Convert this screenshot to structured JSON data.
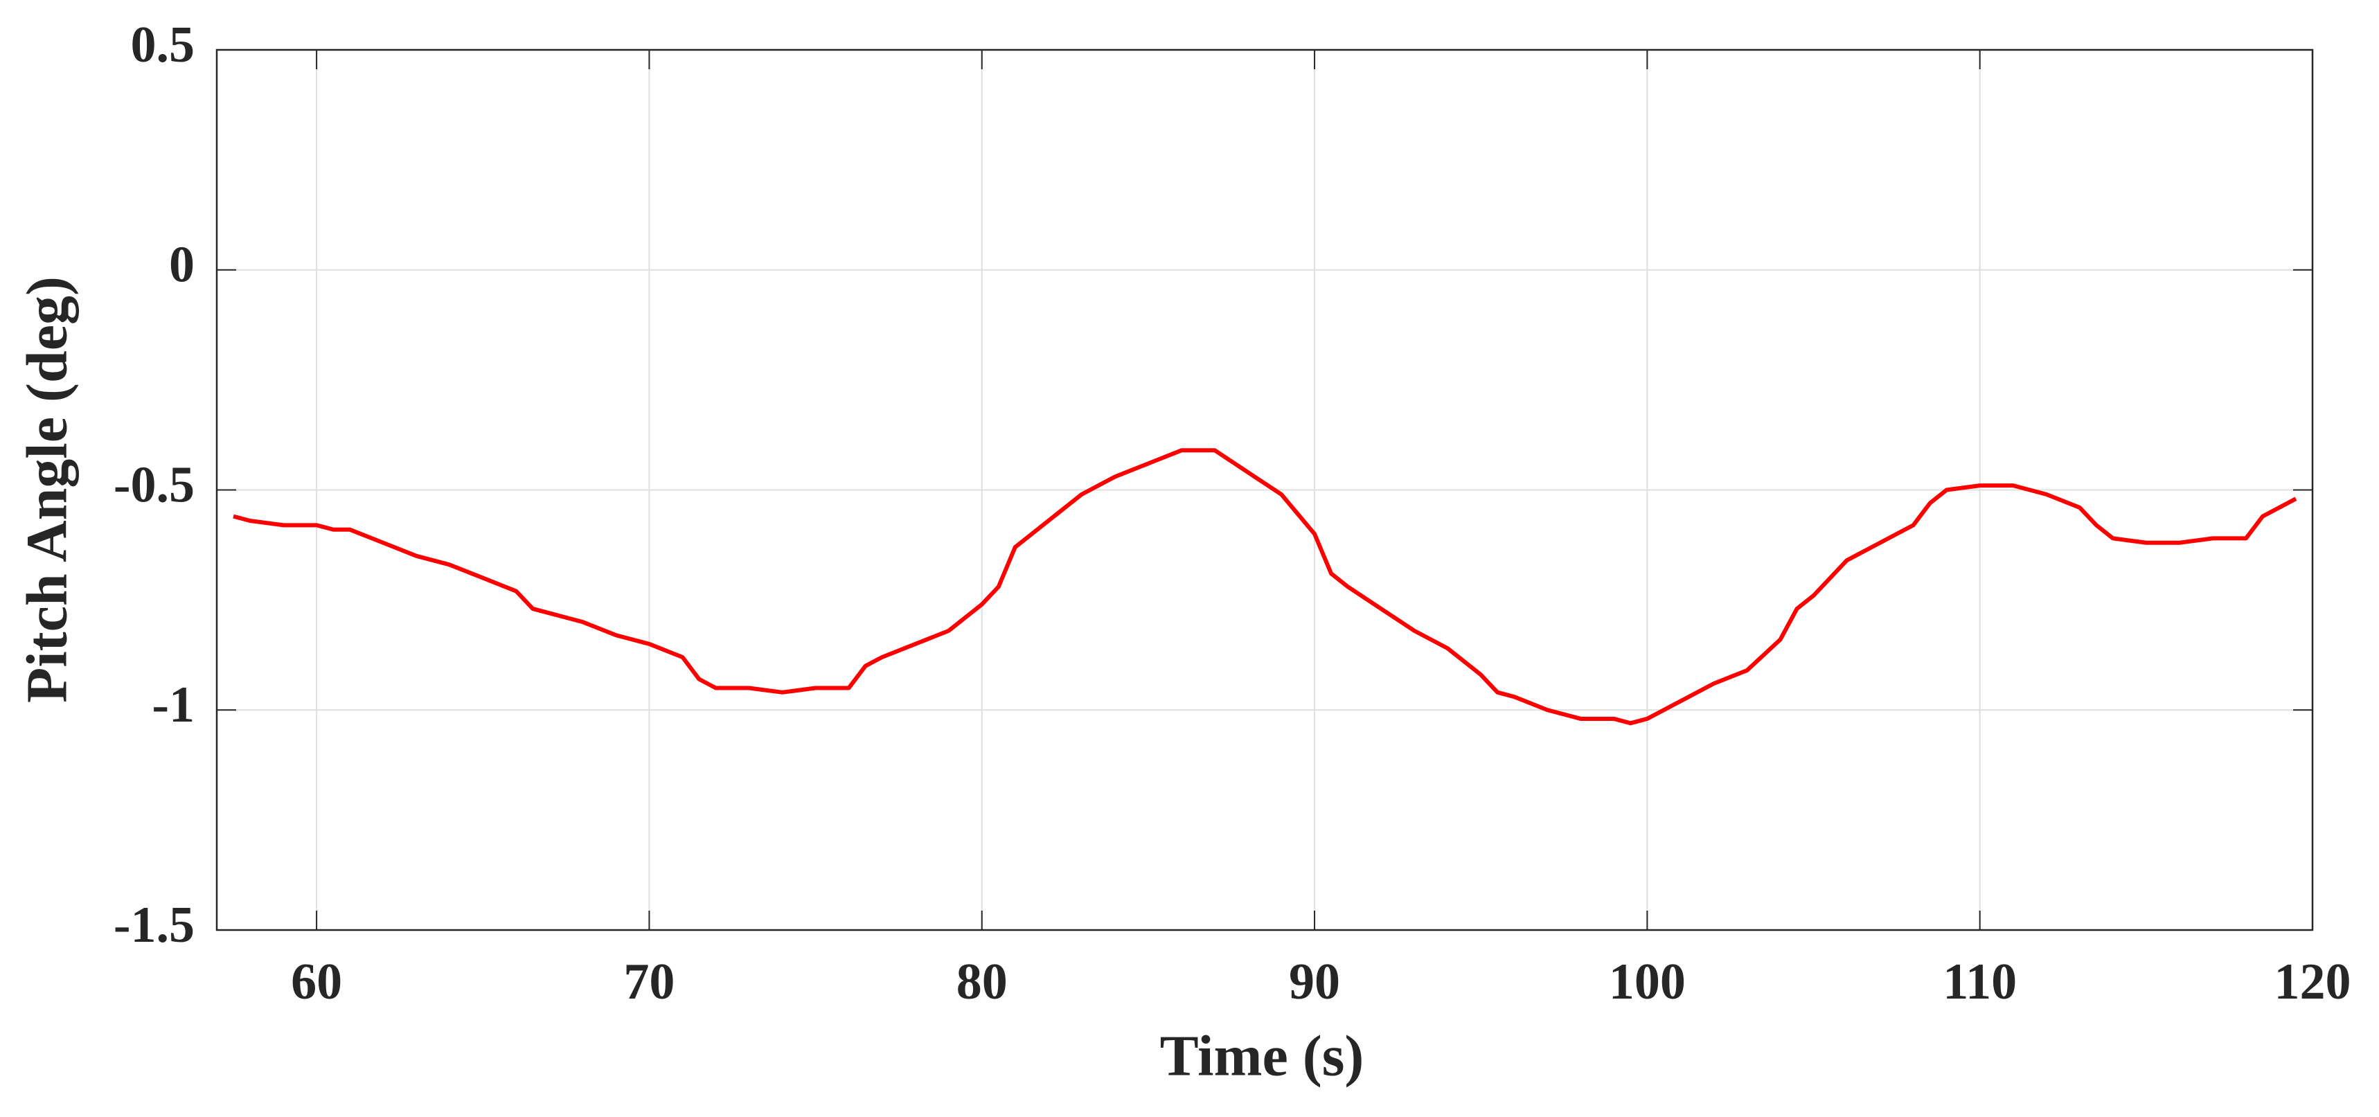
{
  "chart_data": {
    "type": "line",
    "x_label": "Time (s)",
    "y_label": "Pitch Angle (deg)",
    "xlim": [
      57,
      120
    ],
    "xticks": [
      60,
      70,
      80,
      90,
      100,
      110,
      120
    ],
    "ylim": [
      -1.5,
      0.5
    ],
    "yticks": [
      -1.5,
      -1,
      -0.5,
      0,
      0.5
    ],
    "grid": true,
    "x": [
      57.5,
      58,
      59,
      60,
      60.5,
      61,
      62,
      63,
      64,
      65,
      66,
      66.5,
      67,
      68,
      69,
      70,
      71,
      71.5,
      72,
      73,
      74,
      75,
      76,
      76.5,
      77,
      78,
      79,
      80,
      80.5,
      81,
      82,
      83,
      84,
      85,
      86,
      87,
      88,
      89,
      90,
      90.5,
      91,
      92,
      93,
      94,
      95,
      95.5,
      96,
      97,
      98,
      99,
      99.5,
      100,
      101,
      102,
      103,
      104,
      104.5,
      105,
      106,
      107,
      108,
      108.5,
      109,
      110,
      111,
      112,
      113,
      113.5,
      114,
      115,
      116,
      117,
      118,
      118.5,
      119,
      119.5
    ],
    "series": [
      {
        "color": "#ff0000",
        "values": [
          -0.56,
          -0.57,
          -0.58,
          -0.58,
          -0.59,
          -0.59,
          -0.62,
          -0.65,
          -0.67,
          -0.7,
          -0.73,
          -0.77,
          -0.78,
          -0.8,
          -0.83,
          -0.85,
          -0.88,
          -0.93,
          -0.95,
          -0.95,
          -0.96,
          -0.95,
          -0.95,
          -0.9,
          -0.88,
          -0.85,
          -0.82,
          -0.76,
          -0.72,
          -0.63,
          -0.57,
          -0.51,
          -0.47,
          -0.44,
          -0.41,
          -0.41,
          -0.46,
          -0.51,
          -0.6,
          -0.69,
          -0.72,
          -0.77,
          -0.82,
          -0.86,
          -0.92,
          -0.96,
          -0.97,
          -1.0,
          -1.02,
          -1.02,
          -1.03,
          -1.02,
          -0.98,
          -0.94,
          -0.91,
          -0.84,
          -0.77,
          -0.74,
          -0.66,
          -0.62,
          -0.58,
          -0.53,
          -0.5,
          -0.49,
          -0.49,
          -0.51,
          -0.54,
          -0.58,
          -0.61,
          -0.62,
          -0.62,
          -0.61,
          -0.61,
          -0.56,
          -0.54,
          -0.52
        ]
      }
    ]
  }
}
